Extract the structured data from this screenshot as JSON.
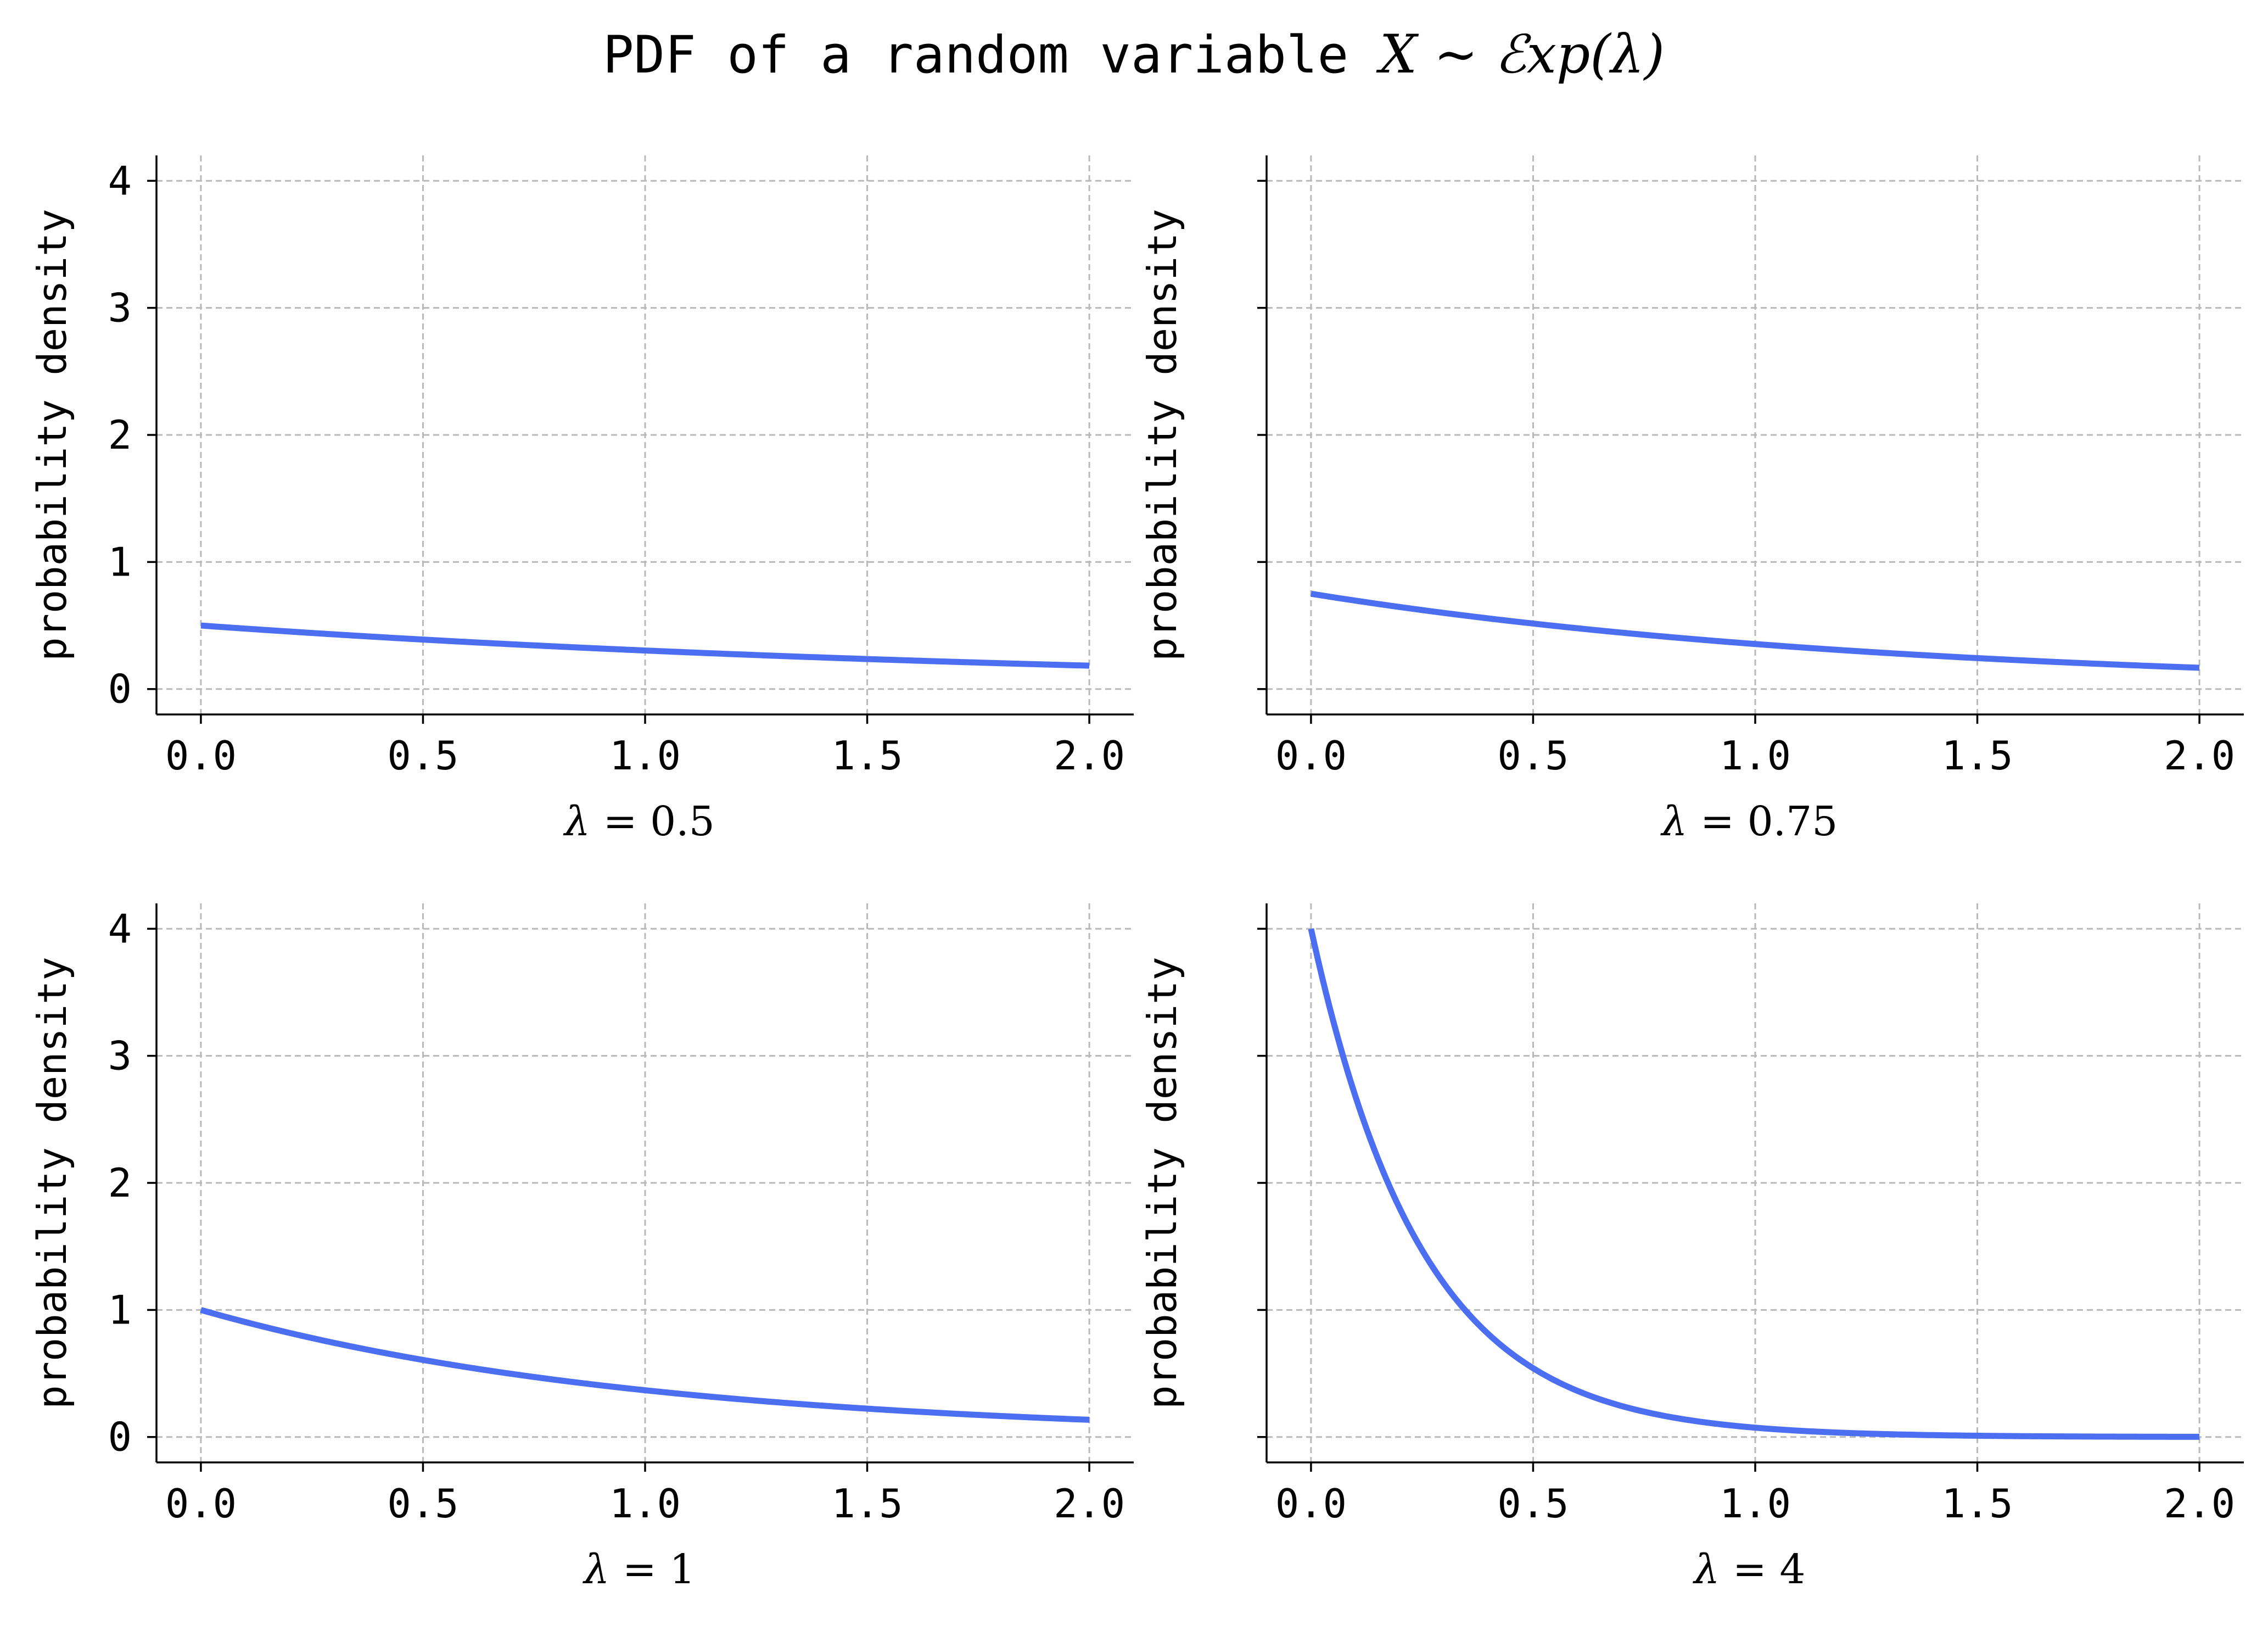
{
  "figure": {
    "title_prefix": "PDF of a random variable ",
    "title_math": "X ∼ ℰxp(λ)"
  },
  "colors": {
    "curve": "#4c6ef0",
    "grid": "#b9b9b9"
  },
  "chart_data": [
    {
      "type": "line",
      "lambda": 0.5,
      "function": "lambda * exp(-lambda * x)",
      "x_range": [
        0,
        2
      ],
      "x": [
        0.0,
        0.5,
        1.0,
        1.5,
        2.0
      ],
      "y": [
        0.5,
        0.389,
        0.303,
        0.236,
        0.184
      ],
      "xlabel": "λ = 0.5",
      "ylabel": "probability density",
      "xticks": [
        "0.0",
        "0.5",
        "1.0",
        "1.5",
        "2.0"
      ],
      "yticks": [
        "0",
        "1",
        "2",
        "3",
        "4"
      ],
      "show_ytick_labels": true,
      "xlim": [
        -0.1,
        2.1
      ],
      "ylim": [
        -0.2,
        4.2
      ],
      "grid": true
    },
    {
      "type": "line",
      "lambda": 0.75,
      "function": "lambda * exp(-lambda * x)",
      "x_range": [
        0,
        2
      ],
      "x": [
        0.0,
        0.5,
        1.0,
        1.5,
        2.0
      ],
      "y": [
        0.75,
        0.516,
        0.354,
        0.243,
        0.167
      ],
      "xlabel": "λ = 0.75",
      "ylabel": "probability density",
      "xticks": [
        "0.0",
        "0.5",
        "1.0",
        "1.5",
        "2.0"
      ],
      "yticks": [
        "0",
        "1",
        "2",
        "3",
        "4"
      ],
      "show_ytick_labels": false,
      "xlim": [
        -0.1,
        2.1
      ],
      "ylim": [
        -0.2,
        4.2
      ],
      "grid": true
    },
    {
      "type": "line",
      "lambda": 1,
      "function": "lambda * exp(-lambda * x)",
      "x_range": [
        0,
        2
      ],
      "x": [
        0.0,
        0.5,
        1.0,
        1.5,
        2.0
      ],
      "y": [
        1.0,
        0.607,
        0.368,
        0.223,
        0.135
      ],
      "xlabel": "λ = 1",
      "ylabel": "probability density",
      "xticks": [
        "0.0",
        "0.5",
        "1.0",
        "1.5",
        "2.0"
      ],
      "yticks": [
        "0",
        "1",
        "2",
        "3",
        "4"
      ],
      "show_ytick_labels": true,
      "xlim": [
        -0.1,
        2.1
      ],
      "ylim": [
        -0.2,
        4.2
      ],
      "grid": true
    },
    {
      "type": "line",
      "lambda": 4,
      "function": "lambda * exp(-lambda * x)",
      "x_range": [
        0,
        2
      ],
      "x": [
        0.0,
        0.5,
        1.0,
        1.5,
        2.0
      ],
      "y": [
        4.0,
        0.541,
        0.073,
        0.01,
        0.001
      ],
      "xlabel": "λ = 4",
      "ylabel": "probability density",
      "xticks": [
        "0.0",
        "0.5",
        "1.0",
        "1.5",
        "2.0"
      ],
      "yticks": [
        "0",
        "1",
        "2",
        "3",
        "4"
      ],
      "show_ytick_labels": false,
      "xlim": [
        -0.1,
        2.1
      ],
      "ylim": [
        -0.2,
        4.2
      ],
      "grid": true
    }
  ]
}
